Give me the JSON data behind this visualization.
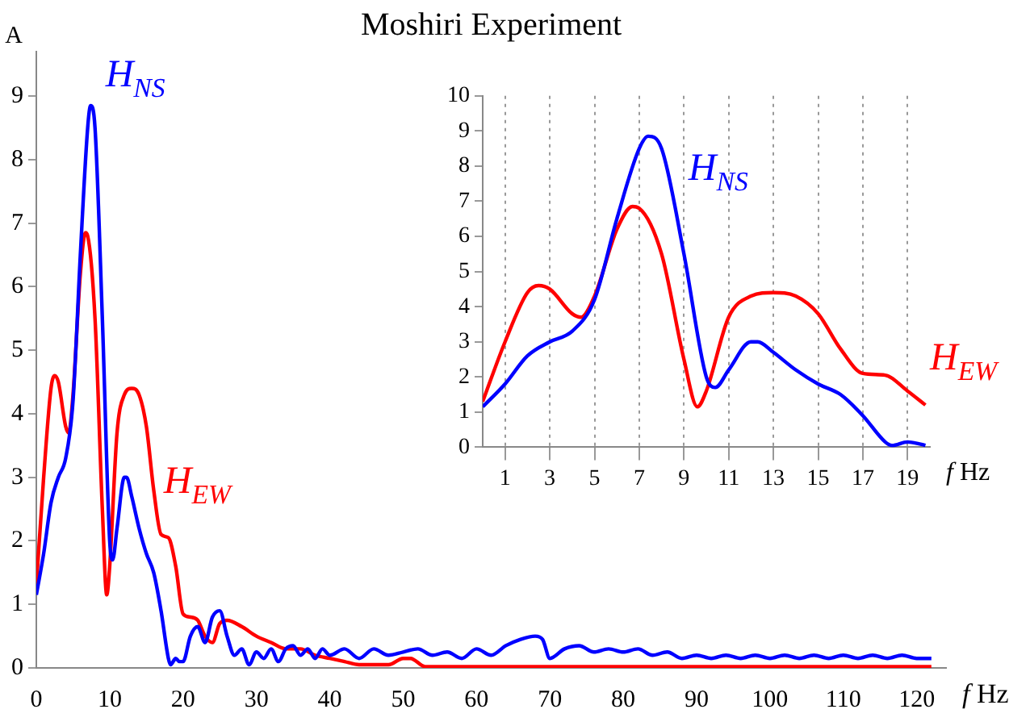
{
  "chart_data": [
    {
      "type": "line",
      "title": "Moshiri Experiment",
      "xlabel": "f Hz",
      "ylabel": "A",
      "xlim": [
        0,
        124
      ],
      "ylim": [
        0,
        9.7
      ],
      "xticks": [
        0,
        10,
        20,
        30,
        40,
        50,
        60,
        70,
        80,
        90,
        100,
        110,
        120
      ],
      "yticks": [
        0,
        1,
        2,
        3,
        4,
        5,
        6,
        7,
        8,
        9
      ],
      "grid": false,
      "series": [
        {
          "name": "H$_{NS}$",
          "color": "#0000ff",
          "x": [
            0,
            1,
            2,
            3,
            4,
            5,
            6,
            7,
            7.4,
            8,
            9,
            10,
            10.4,
            11,
            12,
            12.3,
            13,
            14,
            15,
            16,
            17,
            18,
            18.3,
            19,
            19.5,
            20,
            21,
            22,
            23,
            24,
            25,
            26,
            27,
            28,
            29,
            30,
            31,
            32,
            33,
            34,
            35,
            36,
            37,
            38,
            39,
            40,
            42,
            44,
            46,
            48,
            50,
            52,
            54,
            56,
            58,
            60,
            62,
            64,
            66,
            68,
            69,
            70,
            72,
            74,
            76,
            78,
            80,
            82,
            84,
            86,
            88,
            90,
            92,
            94,
            96,
            98,
            100,
            102,
            104,
            106,
            108,
            110,
            112,
            114,
            116,
            118,
            120,
            122
          ],
          "values": [
            1.15,
            1.8,
            2.6,
            3.0,
            3.3,
            4.2,
            6.5,
            8.5,
            8.85,
            8.5,
            5.5,
            2.0,
            1.7,
            2.2,
            3.0,
            3.0,
            2.7,
            2.2,
            1.8,
            1.5,
            0.9,
            0.15,
            0.05,
            0.15,
            0.1,
            0.1,
            0.5,
            0.65,
            0.4,
            0.8,
            0.9,
            0.5,
            0.2,
            0.3,
            0.05,
            0.25,
            0.15,
            0.3,
            0.1,
            0.3,
            0.35,
            0.2,
            0.3,
            0.15,
            0.3,
            0.2,
            0.3,
            0.15,
            0.3,
            0.2,
            0.25,
            0.3,
            0.2,
            0.25,
            0.15,
            0.3,
            0.2,
            0.35,
            0.45,
            0.5,
            0.45,
            0.15,
            0.3,
            0.35,
            0.25,
            0.3,
            0.25,
            0.3,
            0.2,
            0.25,
            0.15,
            0.2,
            0.15,
            0.2,
            0.15,
            0.2,
            0.15,
            0.2,
            0.15,
            0.2,
            0.15,
            0.2,
            0.15,
            0.2,
            0.15,
            0.2,
            0.15,
            0.15
          ]
        },
        {
          "name": "H$_{EW}$",
          "color": "#ff0000",
          "x": [
            0,
            1,
            2,
            2.5,
            3,
            4,
            4.4,
            5,
            6,
            6.7,
            7,
            8,
            9,
            9.6,
            10,
            11,
            12,
            13,
            14,
            15,
            16,
            17,
            18,
            19,
            20,
            21,
            22,
            23,
            24,
            25,
            26,
            28,
            30,
            32,
            34,
            36,
            38,
            40,
            42,
            44,
            46,
            48,
            50,
            51,
            53,
            60,
            70,
            80,
            90,
            100,
            110,
            122
          ],
          "values": [
            1.3,
            3.0,
            4.4,
            4.6,
            4.5,
            3.8,
            3.7,
            4.3,
            6.2,
            6.85,
            6.8,
            5.5,
            2.5,
            1.15,
            1.6,
            3.7,
            4.3,
            4.4,
            4.3,
            3.8,
            2.8,
            2.1,
            2.05,
            1.6,
            0.85,
            0.8,
            0.75,
            0.5,
            0.4,
            0.7,
            0.75,
            0.65,
            0.5,
            0.4,
            0.3,
            0.3,
            0.2,
            0.15,
            0.1,
            0.05,
            0.05,
            0.05,
            0.15,
            0.15,
            0.02,
            0.02,
            0.02,
            0.02,
            0.02,
            0.02,
            0.02,
            0.02
          ]
        }
      ]
    },
    {
      "type": "line",
      "xlabel": "f Hz",
      "xlim": [
        0,
        20
      ],
      "ylim": [
        0,
        10
      ],
      "xticks": [
        1,
        3,
        5,
        7,
        9,
        11,
        13,
        15,
        17,
        19
      ],
      "yticks": [
        0,
        1,
        2,
        3,
        4,
        5,
        6,
        7,
        8,
        9,
        10
      ],
      "grid": "x",
      "series": [
        {
          "name": "H$_{NS}$",
          "color": "#0000ff",
          "x": [
            0,
            1,
            2,
            3,
            4,
            5,
            6,
            7,
            7.4,
            8,
            9,
            10,
            10.4,
            11,
            12,
            12.3,
            13,
            14,
            15,
            16,
            17,
            18,
            18.3,
            19,
            19.5,
            19.8
          ],
          "values": [
            1.15,
            1.8,
            2.6,
            3.0,
            3.3,
            4.2,
            6.5,
            8.5,
            8.85,
            8.5,
            5.5,
            2.0,
            1.7,
            2.2,
            3.0,
            3.0,
            2.7,
            2.2,
            1.8,
            1.5,
            0.9,
            0.15,
            0.05,
            0.15,
            0.1,
            0.05
          ]
        },
        {
          "name": "H$_{EW}$",
          "color": "#ff0000",
          "x": [
            0,
            1,
            2,
            2.5,
            3,
            4,
            4.4,
            5,
            6,
            6.7,
            7,
            8,
            9,
            9.6,
            10,
            11,
            12,
            13,
            14,
            15,
            16,
            17,
            18,
            19,
            19.8
          ],
          "values": [
            1.3,
            3.0,
            4.4,
            4.6,
            4.5,
            3.8,
            3.7,
            4.3,
            6.2,
            6.85,
            6.8,
            5.5,
            2.5,
            1.15,
            1.6,
            3.7,
            4.3,
            4.4,
            4.3,
            3.8,
            2.8,
            2.1,
            2.05,
            1.6,
            1.2
          ]
        }
      ]
    }
  ]
}
